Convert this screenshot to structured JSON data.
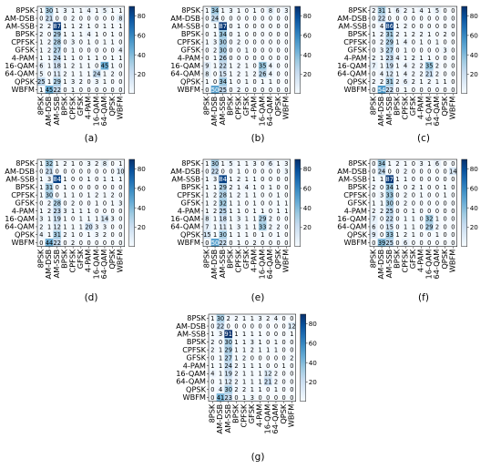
{
  "chart_data": [
    {
      "type": "heatmap",
      "panel_label": "(a)",
      "rows": [
        "8PSK",
        "AM-DSB",
        "AM-SSB",
        "BPSK",
        "CPFSK",
        "GFSK",
        "4-PAM",
        "16-QAM",
        "64-QAM",
        "QPSK",
        "WBFM"
      ],
      "cols": [
        "8PSK",
        "AM-DSB",
        "AM-SSB",
        "BPSK",
        "CPFSK",
        "GFSK",
        "4-PAM",
        "16-QAM",
        "64-QAM",
        "QPSK",
        "WBFM"
      ],
      "values": [
        [
          1,
          30,
          1,
          3,
          1,
          1,
          4,
          1,
          5,
          1,
          1
        ],
        [
          0,
          21,
          0,
          0,
          2,
          0,
          0,
          0,
          0,
          0,
          8
        ],
        [
          2,
          2,
          87,
          1,
          1,
          2,
          1,
          0,
          1,
          1,
          1
        ],
        [
          2,
          0,
          29,
          1,
          1,
          1,
          4,
          1,
          0,
          1,
          0
        ],
        [
          1,
          2,
          28,
          0,
          3,
          0,
          1,
          0,
          1,
          1,
          0
        ],
        [
          1,
          2,
          27,
          0,
          1,
          0,
          0,
          0,
          0,
          0,
          4
        ],
        [
          1,
          1,
          24,
          1,
          1,
          0,
          1,
          1,
          0,
          1,
          1
        ],
        [
          6,
          1,
          18,
          1,
          2,
          1,
          1,
          0,
          45,
          1,
          0
        ],
        [
          5,
          0,
          11,
          2,
          1,
          1,
          1,
          24,
          1,
          2,
          0
        ],
        [
          25,
          1,
          29,
          1,
          3,
          2,
          0,
          3,
          1,
          0,
          0
        ],
        [
          1,
          45,
          22,
          0,
          1,
          0,
          0,
          0,
          0,
          0,
          0
        ]
      ],
      "colorbar_ticks": [
        20,
        40,
        60,
        80
      ],
      "colorbar_range": [
        0,
        90
      ]
    },
    {
      "type": "heatmap",
      "panel_label": "(b)",
      "rows": [
        "8PSK",
        "AM-DSB",
        "AM-SSB",
        "BPSK",
        "CPFSK",
        "GFSK",
        "4-PAM",
        "16-QAM",
        "64-QAM",
        "QPSK",
        "WBFM"
      ],
      "cols": [
        "8PSK",
        "AM-DSB",
        "AM-SSB",
        "BPSK",
        "CPFSK",
        "GFSK",
        "4-PAM",
        "16-QAM",
        "64-QAM",
        "QPSK",
        "WBFM"
      ],
      "values": [
        [
          1,
          34,
          1,
          3,
          1,
          0,
          1,
          0,
          8,
          0,
          3
        ],
        [
          0,
          24,
          0,
          0,
          0,
          0,
          0,
          0,
          0,
          0,
          0
        ],
        [
          0,
          1,
          87,
          0,
          1,
          0,
          0,
          0,
          0,
          0,
          0
        ],
        [
          0,
          1,
          34,
          0,
          1,
          0,
          0,
          0,
          0,
          0,
          0
        ],
        [
          1,
          3,
          30,
          0,
          2,
          0,
          0,
          0,
          0,
          0,
          0
        ],
        [
          0,
          2,
          30,
          0,
          0,
          1,
          0,
          0,
          0,
          0,
          0
        ],
        [
          0,
          1,
          26,
          0,
          0,
          0,
          0,
          0,
          0,
          0,
          0
        ],
        [
          9,
          1,
          22,
          1,
          2,
          1,
          0,
          35,
          4,
          0,
          0
        ],
        [
          8,
          0,
          15,
          1,
          2,
          1,
          2,
          26,
          4,
          0,
          0
        ],
        [
          1,
          0,
          34,
          1,
          0,
          1,
          0,
          1,
          1,
          0,
          0
        ],
        [
          0,
          50,
          25,
          0,
          2,
          0,
          0,
          0,
          0,
          0,
          0
        ]
      ],
      "colorbar_ticks": [
        20,
        40,
        60,
        80
      ],
      "colorbar_range": [
        0,
        90
      ]
    },
    {
      "type": "heatmap",
      "panel_label": "(c)",
      "rows": [
        "8PSK",
        "AM-DSB",
        "AM-SSB",
        "BPSK",
        "CPFSK",
        "GFSK",
        "4-PAM",
        "16-QAM",
        "64-QAM",
        "QPSK",
        "WBFM"
      ],
      "cols": [
        "8PSK",
        "AM-DSB",
        "AM-SSB",
        "BPSK",
        "CPFSK",
        "GFSK",
        "4-PAM",
        "16-QAM",
        "64-QAM",
        "QPSK",
        "WBFM"
      ],
      "values": [
        [
          2,
          31,
          1,
          6,
          2,
          1,
          4,
          1,
          5,
          0,
          0
        ],
        [
          0,
          22,
          0,
          0,
          0,
          0,
          0,
          0,
          0,
          0,
          0
        ],
        [
          0,
          4,
          86,
          1,
          2,
          0,
          0,
          0,
          0,
          0,
          0
        ],
        [
          1,
          2,
          31,
          2,
          1,
          2,
          2,
          1,
          0,
          2,
          0
        ],
        [
          0,
          2,
          29,
          1,
          4,
          0,
          1,
          0,
          1,
          0,
          0
        ],
        [
          0,
          3,
          27,
          0,
          1,
          0,
          0,
          0,
          0,
          3,
          0
        ],
        [
          2,
          1,
          23,
          4,
          1,
          2,
          1,
          1,
          0,
          0,
          0
        ],
        [
          7,
          1,
          19,
          1,
          4,
          2,
          2,
          35,
          2,
          0,
          0
        ],
        [
          0,
          4,
          12,
          1,
          4,
          2,
          2,
          21,
          2,
          0,
          0
        ],
        [
          2,
          2,
          31,
          2,
          6,
          2,
          1,
          2,
          1,
          1,
          0
        ],
        [
          0,
          54,
          22,
          0,
          1,
          0,
          0,
          0,
          0,
          0,
          0
        ]
      ],
      "colorbar_ticks": [
        20,
        40,
        60,
        80
      ],
      "colorbar_range": [
        0,
        90
      ]
    },
    {
      "type": "heatmap",
      "panel_label": "(d)",
      "rows": [
        "8PSK",
        "AM-DSB",
        "AM-SSB",
        "BPSK",
        "CPFSK",
        "GFSK",
        "4-PAM",
        "16-QAM",
        "64-QAM",
        "QPSK",
        "WBFM"
      ],
      "cols": [
        "8PSK",
        "AM-DSB",
        "AM-SSB",
        "BPSK",
        "CPFSK",
        "GFSK",
        "4-PAM",
        "16-QAM",
        "64-QAM",
        "QPSK",
        "WBFM"
      ],
      "values": [
        [
          1,
          32,
          1,
          2,
          1,
          0,
          3,
          2,
          8,
          0,
          1
        ],
        [
          0,
          21,
          0,
          0,
          0,
          0,
          0,
          0,
          0,
          0,
          10
        ],
        [
          1,
          3,
          84,
          1,
          0,
          0,
          1,
          0,
          1,
          1,
          1
        ],
        [
          1,
          31,
          0,
          1,
          0,
          0,
          0,
          0,
          0,
          0,
          0
        ],
        [
          1,
          30,
          0,
          1,
          1,
          0,
          1,
          2,
          1,
          2,
          0
        ],
        [
          0,
          2,
          28,
          0,
          2,
          0,
          0,
          1,
          0,
          1,
          3
        ],
        [
          1,
          2,
          23,
          3,
          1,
          1,
          1,
          0,
          0,
          0,
          0
        ],
        [
          3,
          1,
          19,
          1,
          0,
          1,
          1,
          1,
          14,
          3,
          0
        ],
        [
          2,
          1,
          12,
          1,
          1,
          1,
          20,
          3,
          3,
          0,
          0
        ],
        [
          4,
          1,
          31,
          2,
          1,
          0,
          1,
          3,
          2,
          0,
          0
        ],
        [
          0,
          44,
          22,
          0,
          2,
          0,
          0,
          0,
          0,
          0,
          0
        ]
      ],
      "colorbar_ticks": [
        20,
        40,
        60,
        80
      ],
      "colorbar_range": [
        0,
        90
      ]
    },
    {
      "type": "heatmap",
      "panel_label": "(e)",
      "rows": [
        "8PSK",
        "AM-DSB",
        "AM-SSB",
        "BPSK",
        "CPFSK",
        "GFSK",
        "4-PAM",
        "16-QAM",
        "64-QAM",
        "QPSK",
        "WBFM"
      ],
      "cols": [
        "8PSK",
        "AM-DSB",
        "AM-SSB",
        "BPSK",
        "CPFSK",
        "GFSK",
        "4-PAM",
        "16-QAM",
        "64-QAM",
        "QPSK",
        "WBFM"
      ],
      "values": [
        [
          1,
          30,
          1,
          5,
          1,
          1,
          3,
          0,
          6,
          1,
          3
        ],
        [
          0,
          22,
          0,
          0,
          1,
          0,
          0,
          0,
          0,
          0,
          3
        ],
        [
          1,
          3,
          84,
          1,
          2,
          1,
          1,
          0,
          0,
          0,
          0
        ],
        [
          1,
          1,
          29,
          2,
          1,
          4,
          1,
          0,
          1,
          0,
          0
        ],
        [
          1,
          2,
          28,
          1,
          2,
          1,
          1,
          0,
          0,
          1,
          0
        ],
        [
          1,
          2,
          32,
          1,
          1,
          0,
          1,
          0,
          0,
          1,
          1
        ],
        [
          1,
          2,
          25,
          1,
          1,
          0,
          1,
          1,
          0,
          1,
          1
        ],
        [
          8,
          1,
          18,
          1,
          3,
          1,
          1,
          29,
          2,
          0,
          0
        ],
        [
          7,
          1,
          11,
          1,
          3,
          1,
          1,
          33,
          2,
          2,
          0
        ],
        [
          15,
          1,
          30,
          1,
          1,
          1,
          0,
          1,
          0,
          1,
          0
        ],
        [
          0,
          50,
          22,
          0,
          1,
          0,
          2,
          0,
          0,
          0,
          0
        ]
      ],
      "colorbar_ticks": [
        20,
        40,
        60,
        80
      ],
      "colorbar_range": [
        0,
        90
      ]
    },
    {
      "type": "heatmap",
      "panel_label": "(f)",
      "rows": [
        "8PSK",
        "AM-DSB",
        "AM-SSB",
        "BPSK",
        "CPFSK",
        "GFSK",
        "4-PAM",
        "16-QAM",
        "64-QAM",
        "QPSK",
        "WBFM"
      ],
      "cols": [
        "8PSK",
        "AM-DSB",
        "AM-SSB",
        "BPSK",
        "CPFSK",
        "GFSK",
        "4-PAM",
        "16-QAM",
        "64-QAM",
        "QPSK",
        "WBFM"
      ],
      "values": [
        [
          0,
          34,
          1,
          2,
          1,
          0,
          3,
          1,
          6,
          0,
          0
        ],
        [
          0,
          24,
          0,
          0,
          2,
          0,
          0,
          0,
          0,
          0,
          14
        ],
        [
          1,
          1,
          87,
          1,
          1,
          0,
          0,
          0,
          0,
          0,
          0
        ],
        [
          2,
          0,
          34,
          1,
          0,
          2,
          1,
          0,
          0,
          1,
          0
        ],
        [
          0,
          3,
          33,
          0,
          2,
          0,
          1,
          0,
          0,
          1,
          0
        ],
        [
          1,
          1,
          30,
          0,
          2,
          0,
          0,
          0,
          0,
          0,
          0
        ],
        [
          2,
          2,
          25,
          0,
          0,
          1,
          0,
          0,
          0,
          0,
          0
        ],
        [
          7,
          0,
          22,
          0,
          1,
          1,
          0,
          32,
          1,
          0,
          0
        ],
        [
          6,
          0,
          15,
          0,
          1,
          1,
          0,
          29,
          2,
          0,
          0
        ],
        [
          9,
          0,
          33,
          1,
          2,
          1,
          0,
          0,
          1,
          0,
          0
        ],
        [
          0,
          39,
          25,
          0,
          6,
          0,
          0,
          0,
          0,
          0,
          0
        ]
      ],
      "colorbar_ticks": [
        20,
        40,
        60,
        80
      ],
      "colorbar_range": [
        0,
        90
      ]
    },
    {
      "type": "heatmap",
      "panel_label": "(g)",
      "rows": [
        "8PSK",
        "AM-DSB",
        "AM-SSB",
        "BPSK",
        "CPFSK",
        "GFSK",
        "4-PAM",
        "16-QAM",
        "64-QAM",
        "QPSK",
        "WBFM"
      ],
      "cols": [
        "8PSK",
        "AM-DSB",
        "AM-SSB",
        "BPSK",
        "CPFSK",
        "GFSK",
        "4-PAM",
        "16-QAM",
        "64-QAM",
        "QPSK",
        "WBFM"
      ],
      "values": [
        [
          1,
          30,
          2,
          2,
          1,
          1,
          3,
          2,
          4,
          0,
          0
        ],
        [
          0,
          22,
          0,
          0,
          0,
          0,
          0,
          0,
          0,
          0,
          12
        ],
        [
          1,
          3,
          91,
          1,
          1,
          1,
          1,
          0,
          0,
          0,
          1
        ],
        [
          2,
          0,
          30,
          1,
          1,
          3,
          1,
          0,
          1,
          0,
          0
        ],
        [
          2,
          1,
          29,
          1,
          1,
          2,
          1,
          1,
          1,
          0,
          0
        ],
        [
          0,
          1,
          27,
          1,
          2,
          0,
          0,
          0,
          0,
          0,
          2
        ],
        [
          1,
          1,
          24,
          2,
          1,
          1,
          1,
          0,
          0,
          1,
          0
        ],
        [
          4,
          1,
          19,
          2,
          1,
          1,
          1,
          12,
          2,
          0,
          0
        ],
        [
          0,
          1,
          12,
          2,
          1,
          1,
          1,
          21,
          2,
          0,
          0
        ],
        [
          0,
          4,
          30,
          2,
          2,
          1,
          1,
          0,
          1,
          0,
          0
        ],
        [
          0,
          41,
          23,
          0,
          1,
          3,
          0,
          0,
          0,
          0,
          0
        ]
      ],
      "colorbar_ticks": [
        20,
        40,
        60,
        80
      ],
      "colorbar_range": [
        0,
        90
      ]
    }
  ]
}
